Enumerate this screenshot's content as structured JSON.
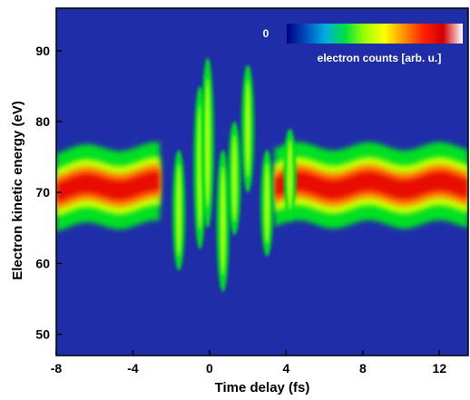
{
  "chart_data": {
    "type": "heatmap",
    "title": "",
    "xlabel": "Time delay (fs)",
    "ylabel": "Electron kinetic energy (eV)",
    "xlim": [
      -8,
      13.5
    ],
    "ylim": [
      47,
      96
    ],
    "x_ticks": [
      -8,
      -4,
      0,
      4,
      8,
      12
    ],
    "y_ticks": [
      50,
      60,
      70,
      80,
      90
    ],
    "colorbar": {
      "label": "electron counts [arb. u.]",
      "min_label": "0",
      "colors": [
        "#000080",
        "#0050c0",
        "#00b0e0",
        "#00e040",
        "#a0ff00",
        "#ffff00",
        "#ff9000",
        "#ff2000",
        "#d00000",
        "#ffffff"
      ]
    },
    "background_color": "#1f2ea8",
    "band": {
      "center_ev": 70.5,
      "width_ev": 5.5,
      "description_values": [
        {
          "x": -8,
          "center": 70.5
        },
        {
          "x": -4,
          "center": 71
        },
        {
          "x": 4,
          "center": 71
        },
        {
          "x": 8,
          "center": 71
        },
        {
          "x": 12,
          "center": 71
        }
      ]
    },
    "streaks": [
      {
        "x": -1.6,
        "top": 76,
        "bottom": 59
      },
      {
        "x": -0.5,
        "top": 85,
        "bottom": 62
      },
      {
        "x": -0.1,
        "top": 89,
        "bottom": 65
      },
      {
        "x": 0.7,
        "top": 76,
        "bottom": 56
      },
      {
        "x": 1.3,
        "top": 80,
        "bottom": 64
      },
      {
        "x": 2.0,
        "top": 88,
        "bottom": 70
      },
      {
        "x": 3.0,
        "top": 76,
        "bottom": 61
      },
      {
        "x": 4.2,
        "top": 79,
        "bottom": 66
      }
    ]
  }
}
